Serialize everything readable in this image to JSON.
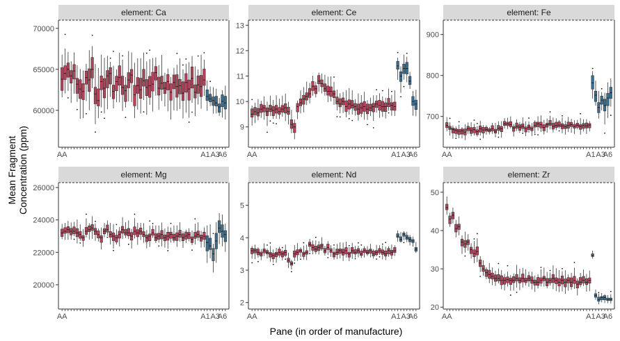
{
  "chart_data": {
    "type": "boxplot-facets",
    "xlabel": "Pane (in order of manufacture)",
    "ylabel_lines": [
      "Mean Fragment",
      "Concentration (ppm)"
    ],
    "colors": {
      "AA": "#b5435a",
      "A": "#3c6e91",
      "strip_bg": "#d9d9d9"
    },
    "x_tick_labels": [
      "AA",
      "A1",
      "A3",
      "A6"
    ],
    "panes": {
      "AA_count": 48,
      "A_count": 7
    },
    "panels": [
      {
        "strip": "element: Ca",
        "ylim": [
          55500,
          71000
        ],
        "yticks": [
          60000,
          65000,
          70000
        ],
        "ytick_labels": [
          "60000",
          "65000",
          "70000"
        ],
        "aa_medians": [
          63800,
          64500,
          65000,
          64200,
          64800,
          63200,
          62600,
          62300,
          64000,
          63700,
          65000,
          62000,
          61200,
          63500,
          62700,
          64200,
          64500,
          62300,
          63500,
          64000,
          62800,
          62400,
          63700,
          64300,
          61900,
          63000,
          62500,
          63600,
          62800,
          63000,
          63200,
          64600,
          62700,
          63300,
          62700,
          63500,
          62200,
          63400,
          62900,
          63000,
          62100,
          63400,
          62600,
          63900,
          62200,
          63100,
          62900,
          63700
        ],
        "a_medians": [
          61700,
          61400,
          61200,
          60900,
          60400,
          61100,
          60900
        ],
        "aa_spread": 1400,
        "a_spread": 800
      },
      {
        "strip": "element: Ce",
        "ylim": [
          8.2,
          13.2
        ],
        "yticks": [
          9,
          10,
          11,
          12,
          13
        ],
        "ytick_labels": [
          "9",
          "10",
          "11",
          "12",
          "13"
        ],
        "aa_medians": [
          9.5,
          9.6,
          9.55,
          9.7,
          9.75,
          9.6,
          9.7,
          9.65,
          9.7,
          9.6,
          9.7,
          9.75,
          9.6,
          9.1,
          9.0,
          9.8,
          9.95,
          10.1,
          10.2,
          10.3,
          10.6,
          10.5,
          10.8,
          10.7,
          10.5,
          10.4,
          10.4,
          10.3,
          10.0,
          9.9,
          10.0,
          9.8,
          9.9,
          9.85,
          9.8,
          9.7,
          9.75,
          9.8,
          9.7,
          9.75,
          9.8,
          9.9,
          9.85,
          9.8,
          9.8,
          9.9,
          9.85,
          9.8
        ],
        "a_medians": [
          11.4,
          11.0,
          11.3,
          11.3,
          10.8,
          10.0,
          9.9
        ],
        "aa_spread": 0.22,
        "a_spread": 0.25
      },
      {
        "strip": "element: Fe",
        "ylim": [
          625,
          935
        ],
        "yticks": [
          700,
          800,
          900
        ],
        "ytick_labels": [
          "700",
          "800",
          "900"
        ],
        "aa_medians": [
          678,
          672,
          668,
          666,
          664,
          665,
          662,
          670,
          666,
          668,
          663,
          670,
          667,
          668,
          666,
          670,
          664,
          671,
          670,
          682,
          682,
          680,
          672,
          676,
          674,
          676,
          670,
          674,
          670,
          678,
          682,
          680,
          673,
          680,
          682,
          676,
          678,
          679,
          677,
          675,
          678,
          680,
          676,
          679,
          676,
          678,
          677,
          679
        ],
        "a_medians": [
          782,
          752,
          722,
          740,
          727,
          745,
          758
        ],
        "aa_spread": 8,
        "a_spread": 18
      },
      {
        "strip": "element: Mg",
        "ylim": [
          18500,
          26300
        ],
        "yticks": [
          20000,
          22000,
          24000,
          26000
        ],
        "ytick_labels": [
          "20000",
          "22000",
          "24000",
          "26000"
        ],
        "aa_medians": [
          23200,
          23300,
          23400,
          23300,
          23300,
          23200,
          23100,
          22900,
          23300,
          23400,
          23500,
          23300,
          23100,
          22900,
          23300,
          23400,
          23100,
          23000,
          22900,
          23100,
          23400,
          23200,
          23200,
          23000,
          23300,
          23200,
          23300,
          23100,
          22900,
          23000,
          23200,
          22900,
          23000,
          23100,
          22900,
          23000,
          23100,
          22900,
          23000,
          23100,
          22900,
          23000,
          23100,
          22800,
          23000,
          23100,
          22900,
          23000
        ],
        "a_medians": [
          22600,
          22400,
          21900,
          22700,
          23500,
          23300,
          23100
        ],
        "aa_spread": 280,
        "a_spread": 500
      },
      {
        "strip": "element: Nd",
        "ylim": [
          1.8,
          5.7
        ],
        "yticks": [
          2,
          3,
          4,
          5
        ],
        "ytick_labels": [
          "2",
          "3",
          "4",
          "5"
        ],
        "aa_medians": [
          3.6,
          3.6,
          3.55,
          3.5,
          3.6,
          3.55,
          3.5,
          3.45,
          3.5,
          3.55,
          3.5,
          3.55,
          3.3,
          3.2,
          3.5,
          3.55,
          3.6,
          3.5,
          3.55,
          3.8,
          3.7,
          3.65,
          3.7,
          3.75,
          3.6,
          3.7,
          3.6,
          3.5,
          3.55,
          3.6,
          3.55,
          3.6,
          3.5,
          3.6,
          3.55,
          3.6,
          3.5,
          3.6,
          3.55,
          3.6,
          3.5,
          3.55,
          3.6,
          3.55,
          3.5,
          3.6,
          3.55,
          3.6
        ],
        "a_medians": [
          4.05,
          3.95,
          4.1,
          4.0,
          3.95,
          3.9,
          3.65
        ],
        "aa_spread": 0.1,
        "a_spread": 0.08
      },
      {
        "strip": "element: Zr",
        "ylim": [
          19.5,
          52.5
        ],
        "yticks": [
          20,
          30,
          40,
          50
        ],
        "ytick_labels": [
          "20",
          "30",
          "40",
          "50"
        ],
        "aa_medians": [
          46,
          43,
          44,
          40.5,
          41,
          37,
          36.5,
          37,
          35,
          34,
          34.5,
          31.5,
          30,
          29,
          28.5,
          28,
          27.5,
          27.5,
          27,
          27,
          27.2,
          27,
          27,
          27.5,
          27,
          27.5,
          27,
          27.5,
          27,
          26.5,
          26.5,
          27,
          27.5,
          26.5,
          27,
          27.5,
          27,
          26.5,
          27,
          26.5,
          27,
          26.5,
          27,
          26,
          26.5,
          27,
          26.5,
          27
        ],
        "a_medians": [
          33.5,
          23,
          22,
          22.5,
          22.5,
          22,
          22
        ],
        "aa_spread": 1.2,
        "a_spread": 0.6
      }
    ]
  }
}
